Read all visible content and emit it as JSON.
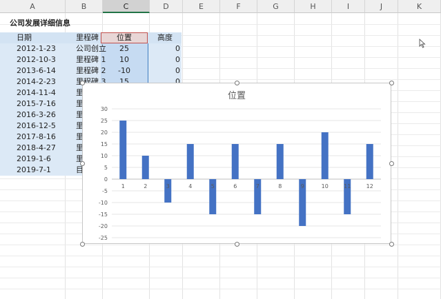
{
  "sheet": {
    "columns": [
      "A",
      "B",
      "C",
      "D",
      "E",
      "F",
      "G",
      "H",
      "I",
      "J",
      "K"
    ],
    "title": "公司发展详细信息",
    "headers": [
      "日期",
      "里程碑",
      "位置",
      "高度"
    ],
    "rows": [
      {
        "date": "2012-1-23",
        "milestone": "公司创立",
        "position": "25",
        "height": "0"
      },
      {
        "date": "2012-10-3",
        "milestone": "里程碑 1",
        "position": "10",
        "height": "0"
      },
      {
        "date": "2013-6-14",
        "milestone": "里程碑 2",
        "position": "-10",
        "height": "0"
      },
      {
        "date": "2014-2-23",
        "milestone": "里程碑 3",
        "position": "15",
        "height": "0"
      },
      {
        "date": "2014-11-4",
        "milestone": "里",
        "position": "",
        "height": ""
      },
      {
        "date": "2015-7-16",
        "milestone": "里",
        "position": "",
        "height": ""
      },
      {
        "date": "2016-3-26",
        "milestone": "里",
        "position": "",
        "height": ""
      },
      {
        "date": "2016-12-5",
        "milestone": "里",
        "position": "",
        "height": ""
      },
      {
        "date": "2017-8-16",
        "milestone": "里",
        "position": "",
        "height": ""
      },
      {
        "date": "2018-4-27",
        "milestone": "里",
        "position": "",
        "height": ""
      },
      {
        "date": "2019-1-6",
        "milestone": "里",
        "position": "",
        "height": ""
      },
      {
        "date": "2019-7-1",
        "milestone": "目",
        "position": "",
        "height": ""
      }
    ]
  },
  "colors": {
    "bar": "#4472c4",
    "selection_border": "#c0504d",
    "column_highlight": "#c6dbf2",
    "row_band": "#dce9f6"
  },
  "chart_data": {
    "type": "bar",
    "title": "位置",
    "categories": [
      "1",
      "2",
      "3",
      "4",
      "5",
      "6",
      "7",
      "8",
      "9",
      "10",
      "11",
      "12"
    ],
    "values": [
      25,
      10,
      -10,
      15,
      -15,
      15,
      -15,
      15,
      -20,
      20,
      -15,
      15
    ],
    "ylim": [
      -25,
      30
    ],
    "yticks": [
      -25,
      -20,
      -15,
      -10,
      -5,
      0,
      5,
      10,
      15,
      20,
      25,
      30
    ],
    "grid": true,
    "legend": "none"
  }
}
